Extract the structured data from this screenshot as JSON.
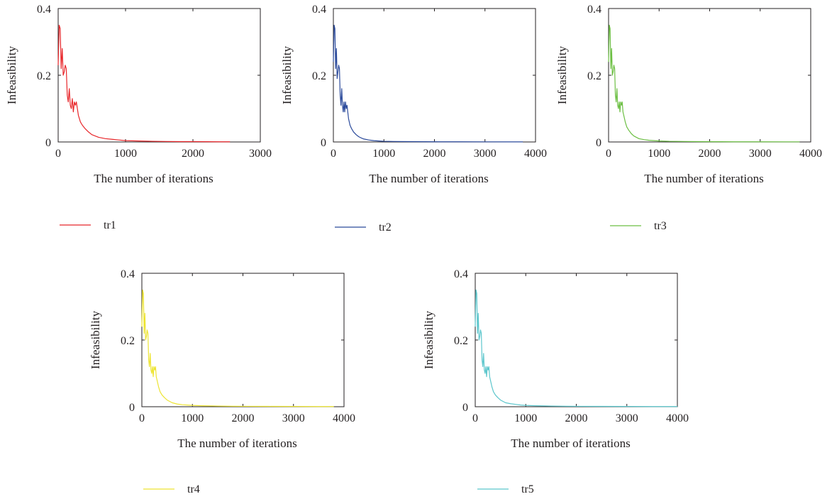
{
  "chart_data": [
    {
      "type": "line",
      "xlabel": "The number of iterations",
      "ylabel": "Infeasibility",
      "xlim": [
        0,
        3000
      ],
      "ylim": [
        0,
        0.4
      ],
      "xticks": [
        0,
        1000,
        2000,
        3000
      ],
      "yticks": [
        0,
        0.2,
        0.4
      ],
      "grid": false,
      "legend_position": "below",
      "series": [
        {
          "name": "tr1",
          "color": "#e8262a",
          "x": [
            0,
            15,
            30,
            45,
            60,
            75,
            90,
            105,
            120,
            135,
            150,
            165,
            180,
            195,
            210,
            225,
            240,
            255,
            270,
            285,
            300,
            330,
            360,
            400,
            450,
            500,
            550,
            600,
            700,
            800,
            900,
            1000,
            1200,
            1400,
            1600,
            1800,
            2000,
            2200,
            2400,
            2550
          ],
          "y": [
            0.23,
            0.35,
            0.34,
            0.22,
            0.28,
            0.2,
            0.21,
            0.23,
            0.22,
            0.14,
            0.12,
            0.16,
            0.11,
            0.1,
            0.13,
            0.09,
            0.12,
            0.11,
            0.12,
            0.1,
            0.08,
            0.06,
            0.05,
            0.04,
            0.03,
            0.022,
            0.018,
            0.014,
            0.01,
            0.008,
            0.006,
            0.004,
            0.003,
            0.002,
            0.0015,
            0.001,
            0.001,
            0.0008,
            0.0006,
            0.0005
          ]
        }
      ]
    },
    {
      "type": "line",
      "xlabel": "The number of iterations",
      "ylabel": "Infeasibility",
      "xlim": [
        0,
        4000
      ],
      "ylim": [
        0,
        0.4
      ],
      "xticks": [
        0,
        1000,
        2000,
        3000,
        4000
      ],
      "yticks": [
        0,
        0.2,
        0.4
      ],
      "grid": false,
      "legend_position": "below",
      "series": [
        {
          "name": "tr2",
          "color": "#2b4a9b",
          "x": [
            0,
            15,
            30,
            45,
            60,
            75,
            90,
            105,
            120,
            135,
            150,
            165,
            180,
            195,
            210,
            225,
            240,
            255,
            270,
            285,
            300,
            330,
            360,
            400,
            450,
            500,
            550,
            600,
            700,
            800,
            900,
            1000,
            1200,
            1500,
            1800,
            2100,
            2500,
            3000,
            3500,
            3750
          ],
          "y": [
            0.24,
            0.35,
            0.34,
            0.22,
            0.28,
            0.19,
            0.21,
            0.23,
            0.22,
            0.14,
            0.11,
            0.16,
            0.11,
            0.09,
            0.12,
            0.09,
            0.12,
            0.1,
            0.11,
            0.09,
            0.07,
            0.05,
            0.04,
            0.03,
            0.022,
            0.016,
            0.012,
            0.009,
            0.006,
            0.004,
            0.003,
            0.002,
            0.0015,
            0.001,
            0.0008,
            0.0006,
            0.0005,
            0.0004,
            0.0003,
            0.0003
          ]
        }
      ]
    },
    {
      "type": "line",
      "xlabel": "The number of iterations",
      "ylabel": "Infeasibility",
      "xlim": [
        0,
        4000
      ],
      "ylim": [
        0,
        0.4
      ],
      "xticks": [
        0,
        1000,
        2000,
        3000,
        4000
      ],
      "yticks": [
        0,
        0.2,
        0.4
      ],
      "grid": false,
      "legend_position": "below",
      "series": [
        {
          "name": "tr3",
          "color": "#6cbf43",
          "x": [
            0,
            15,
            30,
            45,
            60,
            75,
            90,
            105,
            120,
            135,
            150,
            165,
            180,
            195,
            210,
            225,
            240,
            255,
            270,
            285,
            300,
            330,
            360,
            400,
            450,
            500,
            550,
            600,
            700,
            800,
            900,
            1000,
            1200,
            1500,
            1800,
            2100,
            2500,
            3000,
            3500,
            3780
          ],
          "y": [
            0.24,
            0.35,
            0.34,
            0.22,
            0.28,
            0.2,
            0.21,
            0.23,
            0.22,
            0.14,
            0.12,
            0.16,
            0.11,
            0.1,
            0.12,
            0.09,
            0.12,
            0.11,
            0.12,
            0.09,
            0.08,
            0.06,
            0.045,
            0.035,
            0.025,
            0.018,
            0.014,
            0.01,
            0.007,
            0.005,
            0.004,
            0.003,
            0.002,
            0.0015,
            0.001,
            0.0008,
            0.0006,
            0.0005,
            0.0004,
            0.0004
          ]
        }
      ]
    },
    {
      "type": "line",
      "xlabel": "The number of iterations",
      "ylabel": "Infeasibility",
      "xlim": [
        0,
        4000
      ],
      "ylim": [
        0,
        0.4
      ],
      "xticks": [
        0,
        1000,
        2000,
        3000,
        4000
      ],
      "yticks": [
        0,
        0.2,
        0.4
      ],
      "grid": false,
      "legend_position": "below",
      "series": [
        {
          "name": "tr4",
          "color": "#ede433",
          "x": [
            0,
            15,
            30,
            45,
            60,
            75,
            90,
            105,
            120,
            135,
            150,
            165,
            180,
            195,
            210,
            225,
            240,
            255,
            270,
            285,
            300,
            330,
            360,
            400,
            450,
            500,
            550,
            600,
            700,
            800,
            900,
            1000,
            1200,
            1500,
            1800,
            2100,
            2500,
            3000,
            3500,
            3800
          ],
          "y": [
            0.24,
            0.35,
            0.34,
            0.22,
            0.28,
            0.2,
            0.21,
            0.23,
            0.22,
            0.14,
            0.12,
            0.16,
            0.11,
            0.1,
            0.12,
            0.09,
            0.12,
            0.11,
            0.12,
            0.09,
            0.08,
            0.06,
            0.045,
            0.035,
            0.027,
            0.02,
            0.016,
            0.012,
            0.008,
            0.006,
            0.005,
            0.004,
            0.003,
            0.002,
            0.0015,
            0.0012,
            0.001,
            0.0008,
            0.0006,
            0.0005
          ]
        }
      ]
    },
    {
      "type": "line",
      "xlabel": "The number of iterations",
      "ylabel": "Infeasibility",
      "xlim": [
        0,
        4000
      ],
      "ylim": [
        0,
        0.4
      ],
      "xticks": [
        0,
        1000,
        2000,
        3000,
        4000
      ],
      "yticks": [
        0,
        0.2,
        0.4
      ],
      "grid": false,
      "legend_position": "below",
      "series": [
        {
          "name": "tr5",
          "color": "#5cc6cc",
          "x": [
            0,
            15,
            30,
            45,
            60,
            75,
            90,
            105,
            120,
            135,
            150,
            165,
            180,
            195,
            210,
            225,
            240,
            255,
            270,
            285,
            300,
            330,
            360,
            400,
            450,
            500,
            550,
            600,
            700,
            800,
            900,
            1000,
            1200,
            1500,
            1800,
            2100,
            2500,
            3000,
            3500,
            4000
          ],
          "y": [
            0.24,
            0.35,
            0.34,
            0.22,
            0.28,
            0.2,
            0.21,
            0.23,
            0.22,
            0.14,
            0.12,
            0.16,
            0.11,
            0.1,
            0.12,
            0.09,
            0.12,
            0.11,
            0.12,
            0.09,
            0.08,
            0.06,
            0.045,
            0.035,
            0.027,
            0.02,
            0.016,
            0.012,
            0.009,
            0.007,
            0.005,
            0.004,
            0.003,
            0.002,
            0.0015,
            0.0012,
            0.001,
            0.0008,
            0.0006,
            0.0005
          ]
        }
      ]
    }
  ]
}
